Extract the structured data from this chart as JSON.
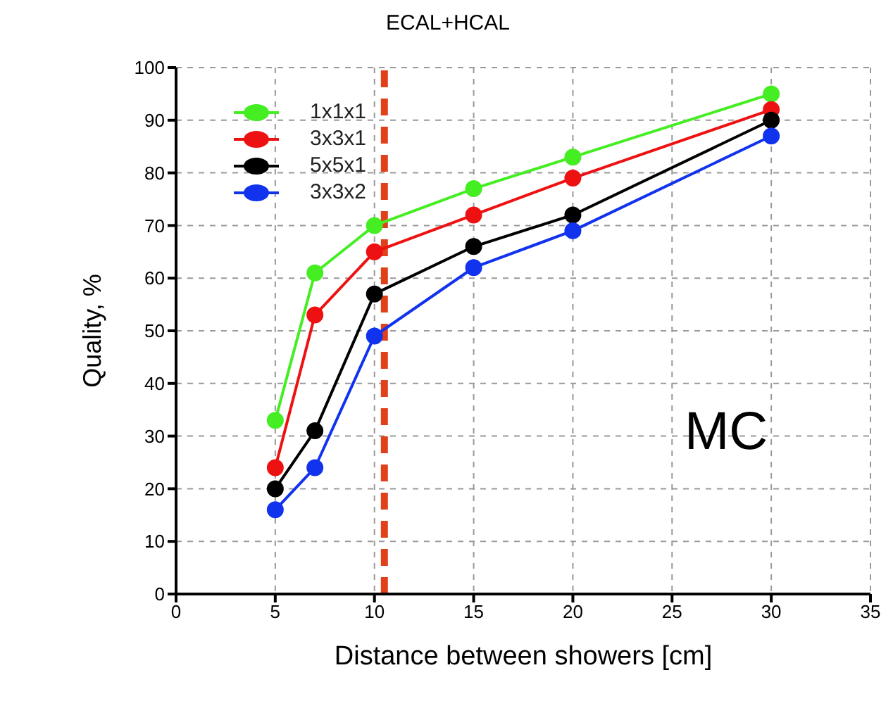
{
  "chart_data": {
    "type": "line",
    "title": "ECAL+HCAL",
    "xlabel": "Distance between showers [cm]",
    "ylabel": "Quality, %",
    "x": [
      5,
      7,
      10,
      15,
      20,
      30
    ],
    "series": [
      {
        "name": "1x1x1",
        "color": "#44ee22",
        "values": [
          33,
          61,
          70,
          77,
          83,
          95
        ]
      },
      {
        "name": "3x3x1",
        "color": "#ee1111",
        "values": [
          24,
          53,
          65,
          72,
          79,
          92
        ]
      },
      {
        "name": "5x5x1",
        "color": "#000000",
        "values": [
          20,
          31,
          57,
          66,
          72,
          90
        ]
      },
      {
        "name": "3x3x2",
        "color": "#1133ee",
        "values": [
          16,
          24,
          49,
          62,
          69,
          87
        ]
      }
    ],
    "xlim": [
      0,
      35
    ],
    "xticks": [
      0,
      5,
      10,
      15,
      20,
      25,
      30,
      35
    ],
    "ylim": [
      0,
      100
    ],
    "yticks": [
      0,
      10,
      20,
      30,
      40,
      50,
      60,
      70,
      80,
      90,
      100
    ],
    "ref_lines": [
      {
        "axis": "x",
        "value": 10.5,
        "color": "#e0401a",
        "line_style": "dashed"
      }
    ],
    "annotations": [
      "MC"
    ],
    "grid": true,
    "legend": "top left",
    "marker": "circle",
    "line_style": "solid"
  }
}
